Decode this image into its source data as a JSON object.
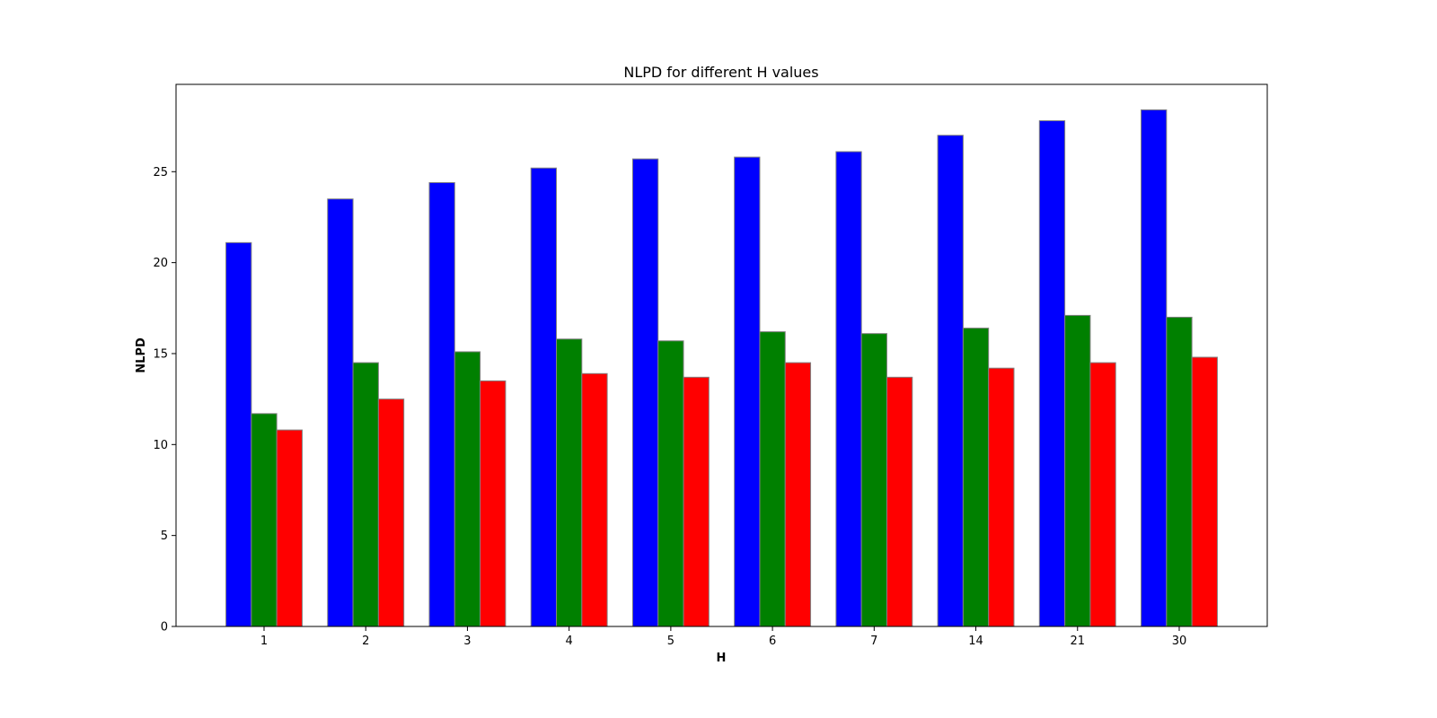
{
  "chart_data": {
    "type": "bar",
    "title": "NLPD for different H values",
    "xlabel": "H",
    "ylabel": "NLPD",
    "categories": [
      "1",
      "2",
      "3",
      "4",
      "5",
      "6",
      "7",
      "14",
      "21",
      "30"
    ],
    "series": [
      {
        "color": "#0000ff",
        "values": [
          21.1,
          23.5,
          24.4,
          25.2,
          25.7,
          25.8,
          26.1,
          27.0,
          27.8,
          28.4
        ]
      },
      {
        "color": "#008000",
        "values": [
          11.7,
          14.5,
          15.1,
          15.8,
          15.7,
          16.2,
          16.1,
          16.4,
          17.1,
          17.0
        ]
      },
      {
        "color": "#ff0000",
        "values": [
          10.8,
          12.5,
          13.5,
          13.9,
          13.7,
          14.5,
          13.7,
          14.2,
          14.5,
          14.8
        ]
      }
    ],
    "bar_edge_color": "#808080",
    "ylim": [
      0,
      29.8
    ],
    "yticks": [
      0,
      5,
      10,
      15,
      20,
      25
    ],
    "grid": false,
    "legend": "none"
  }
}
